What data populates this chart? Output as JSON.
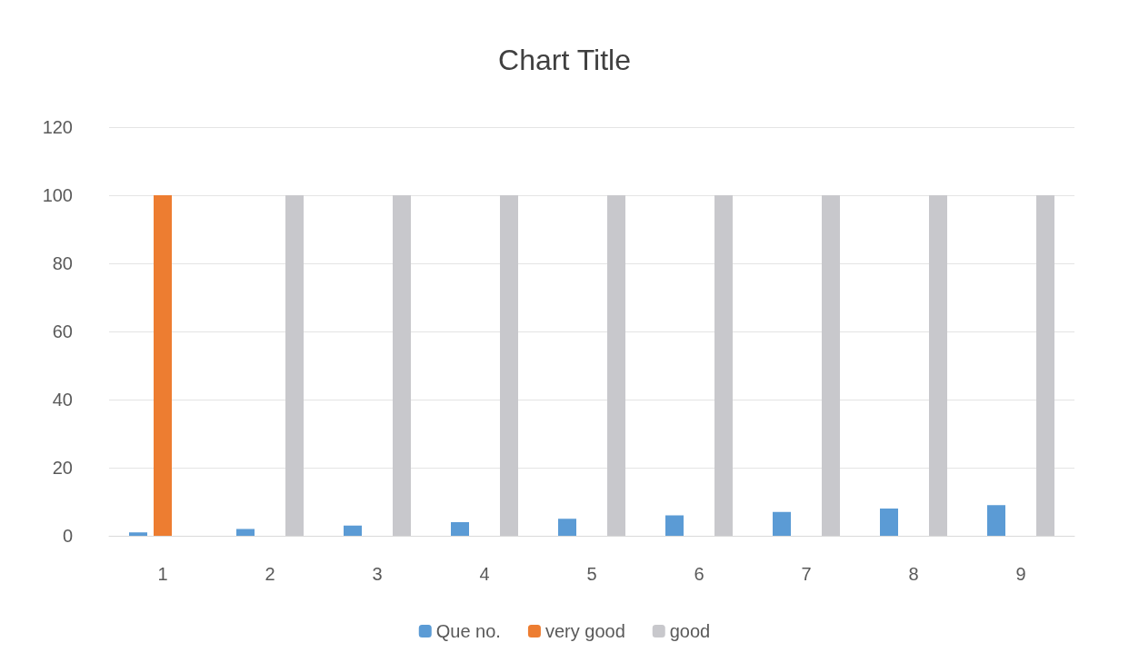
{
  "chart_data": {
    "type": "bar",
    "title": "Chart Title",
    "categories": [
      "1",
      "2",
      "3",
      "4",
      "5",
      "6",
      "7",
      "8",
      "9"
    ],
    "series": [
      {
        "name": "Que no.",
        "color": "#5b9bd5",
        "values": [
          1,
          2,
          3,
          4,
          5,
          6,
          7,
          8,
          9
        ]
      },
      {
        "name": "very good",
        "color": "#ed7d31",
        "values": [
          100,
          null,
          null,
          null,
          null,
          null,
          null,
          null,
          null
        ]
      },
      {
        "name": "good",
        "color": "#c8c8cc",
        "values": [
          null,
          100,
          100,
          100,
          100,
          100,
          100,
          100,
          100
        ]
      }
    ],
    "ylim": [
      0,
      120
    ],
    "yticks": [
      0,
      20,
      40,
      60,
      80,
      100,
      120
    ],
    "grid": "y",
    "legend": "bottom"
  }
}
